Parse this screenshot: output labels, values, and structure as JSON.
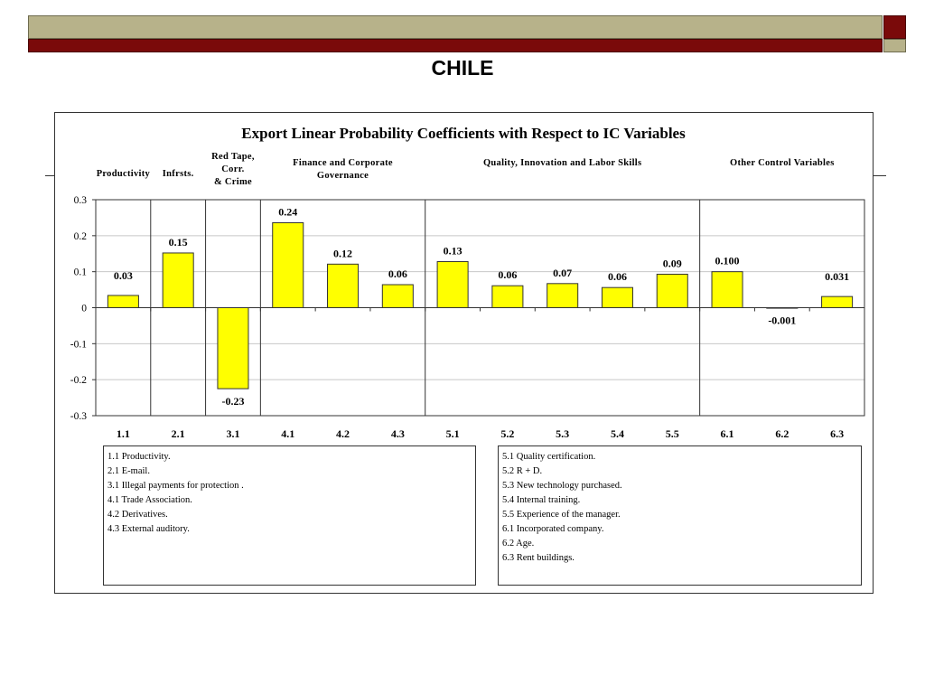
{
  "slide": {
    "title": "CHILE"
  },
  "colors": {
    "header_olive": "#b7b28a",
    "header_maroon": "#7a0a0a",
    "bar_fill": "#ffff00",
    "bar_stroke": "#333333"
  },
  "chart_data": {
    "type": "bar",
    "title": "Export Linear Probability Coefficients with Respect to IC Variables",
    "xlabel": "",
    "ylabel": "",
    "categories": [
      "1.1",
      "2.1",
      "3.1",
      "4.1",
      "4.2",
      "4.3",
      "5.1",
      "5.2",
      "5.3",
      "5.4",
      "5.5",
      "6.1",
      "6.2",
      "6.3"
    ],
    "values": [
      0.034,
      0.152,
      -0.225,
      0.236,
      0.121,
      0.064,
      0.128,
      0.061,
      0.067,
      0.056,
      0.093,
      0.1,
      -0.001,
      0.031
    ],
    "data_labels": [
      "0.03",
      "0.15",
      "-0.23",
      "0.24",
      "0.12",
      "0.06",
      "0.13",
      "0.06",
      "0.07",
      "0.06",
      "0.09",
      "0.100",
      "-0.001",
      "0.031"
    ],
    "ylim": [
      -0.3,
      0.3
    ],
    "yticks": [
      0.3,
      0.2,
      0.1,
      0,
      -0.1,
      -0.2,
      -0.3
    ],
    "ytick_labels": [
      "0.3",
      "0.2",
      "0.1",
      "0",
      "-0.1",
      "-0.2",
      "-0.3"
    ],
    "grid": true,
    "groups": [
      {
        "label_lines": [
          "Productivity"
        ],
        "categories": [
          "1.1"
        ]
      },
      {
        "label_lines": [
          "Infrsts."
        ],
        "categories": [
          "2.1"
        ]
      },
      {
        "label_lines": [
          "Red Tape,",
          "Corr.",
          "& Crime"
        ],
        "categories": [
          "3.1"
        ]
      },
      {
        "label_lines": [
          "Finance and Corporate",
          "Governance"
        ],
        "categories": [
          "4.1",
          "4.2",
          "4.3"
        ]
      },
      {
        "label_lines": [
          "Quality, Innovation and Labor Skills"
        ],
        "categories": [
          "5.1",
          "5.2",
          "5.3",
          "5.4",
          "5.5"
        ]
      },
      {
        "label_lines": [
          "Other Control Variables"
        ],
        "categories": [
          "6.1",
          "6.2",
          "6.3"
        ]
      }
    ]
  },
  "legend": {
    "left": [
      "1.1 Productivity.",
      "2.1 E-mail.",
      "3.1 Illegal payments for protection .",
      "4.1 Trade Association.",
      "4.2 Derivatives.",
      "4.3 External auditory."
    ],
    "right": [
      "5.1 Quality certification.",
      "5.2 R + D.",
      "5.3 New technology purchased.",
      "5.4 Internal training.",
      "5.5 Experience of the manager.",
      "6.1 Incorporated company.",
      "6.2 Age.",
      "6.3 Rent buildings."
    ]
  }
}
